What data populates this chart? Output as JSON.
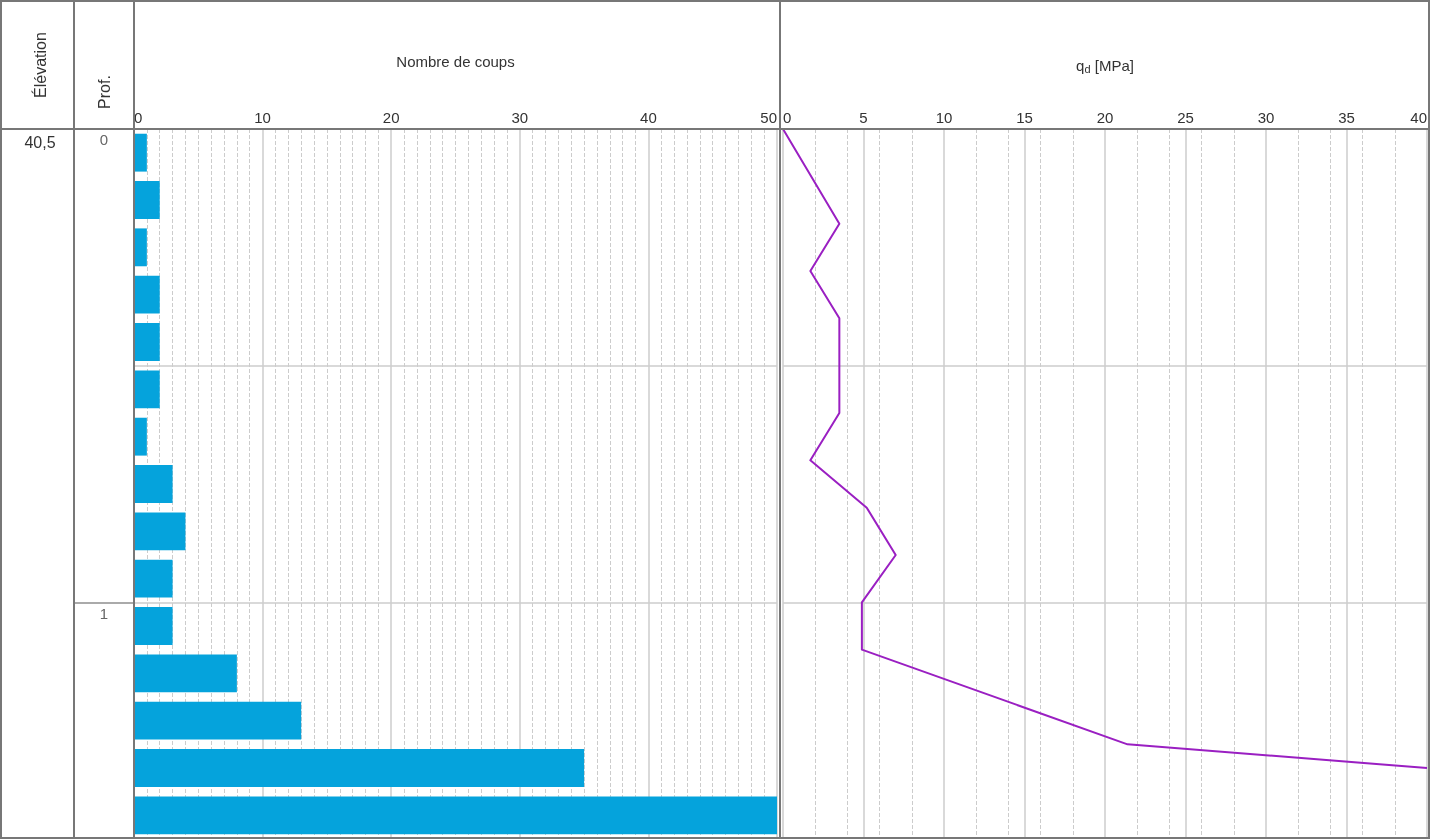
{
  "chart_data": [
    {
      "type": "bar",
      "orientation": "horizontal",
      "xlabel": "Nombre de coups",
      "ylabel": "Prof.",
      "annotations": [
        "Élévation",
        "40,5"
      ],
      "categories": [
        "0",
        null,
        null,
        null,
        null,
        null,
        null,
        null,
        null,
        null,
        "1",
        null,
        null,
        null,
        null
      ],
      "values": [
        1,
        2,
        1,
        2,
        2,
        2,
        1,
        3,
        4,
        3,
        3,
        8,
        13,
        35,
        50
      ],
      "color": "#05a3dc",
      "xlim": [
        0,
        50
      ],
      "xticks": [
        0,
        10,
        20,
        30,
        40,
        50
      ],
      "grid": true
    },
    {
      "type": "line",
      "xlabel": "q$_{d}$ [MPa]",
      "series": [
        {
          "color": "#9a1fc2",
          "x": [
            0,
            3.5,
            1.7,
            3.5,
            3.5,
            1.7,
            5.2,
            7.0,
            4.9,
            4.9,
            21.4,
            40
          ],
          "values": [
            0,
            0.2,
            0.3,
            0.4,
            0.6,
            0.7,
            0.8,
            0.9,
            1.0,
            1.1,
            1.3,
            1.35
          ]
        }
      ],
      "xlim": [
        0,
        40
      ],
      "xticks": [
        0,
        5,
        10,
        15,
        20,
        25,
        30,
        35,
        40
      ],
      "ylim": [
        1.5,
        0
      ],
      "yticks": [
        0,
        {
          "value": 0.5,
          "label": null
        },
        1
      ],
      "tick_labels": "x",
      "grid": true,
      "marker": "none",
      "line_style": "solid"
    }
  ]
}
